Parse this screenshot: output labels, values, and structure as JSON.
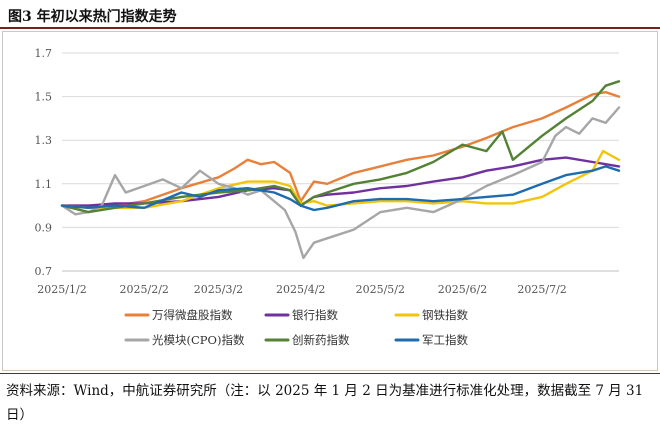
{
  "figure": {
    "title": "图3 年初以来热门指数走势",
    "source": "资料来源：Wind，中航证券研究所（注：以 2025 年 1 月 2 日为基准进行标准化处理，数据截至 7 月 31 日）"
  },
  "chart_data": {
    "type": "line",
    "title": "年初以来热门指数走势",
    "xlabel": "",
    "ylabel": "",
    "x_ticks": [
      "2025/1/2",
      "2025/2/2",
      "2025/3/2",
      "2025/4/2",
      "2025/5/2",
      "2025/6/2",
      "2025/7/2"
    ],
    "x_tick_positions": [
      0,
      31,
      59,
      90,
      120,
      151,
      181
    ],
    "x_range": [
      0,
      210
    ],
    "ylim": [
      0.7,
      1.7
    ],
    "y_ticks": [
      0.7,
      0.9,
      1.1,
      1.3,
      1.5,
      1.7
    ],
    "y_tick_labels": [
      "0.7",
      "0.9",
      "1.1",
      "1.3",
      "1.5",
      "1.7"
    ],
    "x_unit": "days since 2025/1/2",
    "legend_position": "bottom",
    "series": [
      {
        "name": "万得微盘股指数",
        "color": "#E8803A",
        "points": [
          [
            0,
            1.0
          ],
          [
            10,
            1.0
          ],
          [
            20,
            1.0
          ],
          [
            31,
            1.02
          ],
          [
            45,
            1.08
          ],
          [
            59,
            1.13
          ],
          [
            65,
            1.17
          ],
          [
            70,
            1.21
          ],
          [
            75,
            1.19
          ],
          [
            80,
            1.2
          ],
          [
            86,
            1.15
          ],
          [
            90,
            1.02
          ],
          [
            95,
            1.11
          ],
          [
            100,
            1.1
          ],
          [
            110,
            1.15
          ],
          [
            120,
            1.18
          ],
          [
            130,
            1.21
          ],
          [
            140,
            1.23
          ],
          [
            151,
            1.27
          ],
          [
            160,
            1.31
          ],
          [
            170,
            1.36
          ],
          [
            181,
            1.4
          ],
          [
            190,
            1.45
          ],
          [
            200,
            1.51
          ],
          [
            205,
            1.52
          ],
          [
            210,
            1.5
          ]
        ]
      },
      {
        "name": "银行指数",
        "color": "#7030A0",
        "points": [
          [
            0,
            1.0
          ],
          [
            10,
            1.0
          ],
          [
            20,
            1.01
          ],
          [
            31,
            1.01
          ],
          [
            45,
            1.02
          ],
          [
            59,
            1.04
          ],
          [
            70,
            1.07
          ],
          [
            80,
            1.08
          ],
          [
            86,
            1.07
          ],
          [
            90,
            1.0
          ],
          [
            95,
            1.04
          ],
          [
            100,
            1.05
          ],
          [
            110,
            1.06
          ],
          [
            120,
            1.08
          ],
          [
            130,
            1.09
          ],
          [
            140,
            1.11
          ],
          [
            151,
            1.13
          ],
          [
            160,
            1.16
          ],
          [
            170,
            1.18
          ],
          [
            181,
            1.21
          ],
          [
            190,
            1.22
          ],
          [
            200,
            1.2
          ],
          [
            205,
            1.19
          ],
          [
            210,
            1.18
          ]
        ]
      },
      {
        "name": "钢铁指数",
        "color": "#F2C40C",
        "points": [
          [
            0,
            1.0
          ],
          [
            10,
            0.99
          ],
          [
            20,
            0.99
          ],
          [
            31,
            0.99
          ],
          [
            45,
            1.02
          ],
          [
            59,
            1.08
          ],
          [
            70,
            1.11
          ],
          [
            80,
            1.11
          ],
          [
            86,
            1.09
          ],
          [
            90,
            1.01
          ],
          [
            95,
            1.02
          ],
          [
            100,
            1.0
          ],
          [
            110,
            1.01
          ],
          [
            120,
            1.02
          ],
          [
            130,
            1.02
          ],
          [
            140,
            1.01
          ],
          [
            151,
            1.02
          ],
          [
            160,
            1.01
          ],
          [
            170,
            1.01
          ],
          [
            181,
            1.04
          ],
          [
            190,
            1.1
          ],
          [
            200,
            1.16
          ],
          [
            204,
            1.25
          ],
          [
            207,
            1.23
          ],
          [
            210,
            1.21
          ]
        ]
      },
      {
        "name": "光模块(CPO)指数",
        "color": "#A6A6A6",
        "points": [
          [
            0,
            1.0
          ],
          [
            5,
            0.96
          ],
          [
            10,
            0.97
          ],
          [
            15,
            1.0
          ],
          [
            20,
            1.14
          ],
          [
            24,
            1.06
          ],
          [
            31,
            1.09
          ],
          [
            38,
            1.12
          ],
          [
            45,
            1.08
          ],
          [
            52,
            1.16
          ],
          [
            59,
            1.1
          ],
          [
            65,
            1.08
          ],
          [
            70,
            1.05
          ],
          [
            75,
            1.07
          ],
          [
            80,
            1.02
          ],
          [
            84,
            0.98
          ],
          [
            88,
            0.88
          ],
          [
            91,
            0.76
          ],
          [
            95,
            0.83
          ],
          [
            100,
            0.85
          ],
          [
            110,
            0.89
          ],
          [
            120,
            0.97
          ],
          [
            130,
            0.99
          ],
          [
            140,
            0.97
          ],
          [
            151,
            1.03
          ],
          [
            160,
            1.09
          ],
          [
            170,
            1.14
          ],
          [
            181,
            1.2
          ],
          [
            186,
            1.32
          ],
          [
            190,
            1.36
          ],
          [
            195,
            1.33
          ],
          [
            200,
            1.4
          ],
          [
            205,
            1.38
          ],
          [
            210,
            1.45
          ]
        ]
      },
      {
        "name": "创新药指数",
        "color": "#548235",
        "points": [
          [
            0,
            1.0
          ],
          [
            10,
            0.97
          ],
          [
            20,
            0.99
          ],
          [
            31,
            1.01
          ],
          [
            45,
            1.04
          ],
          [
            59,
            1.06
          ],
          [
            70,
            1.07
          ],
          [
            80,
            1.09
          ],
          [
            86,
            1.07
          ],
          [
            90,
            1.0
          ],
          [
            95,
            1.04
          ],
          [
            100,
            1.06
          ],
          [
            110,
            1.1
          ],
          [
            120,
            1.12
          ],
          [
            130,
            1.15
          ],
          [
            140,
            1.2
          ],
          [
            151,
            1.28
          ],
          [
            160,
            1.25
          ],
          [
            166,
            1.34
          ],
          [
            170,
            1.21
          ],
          [
            181,
            1.32
          ],
          [
            190,
            1.4
          ],
          [
            200,
            1.48
          ],
          [
            205,
            1.55
          ],
          [
            210,
            1.57
          ]
        ]
      },
      {
        "name": "军工指数",
        "color": "#1F6BAF",
        "points": [
          [
            0,
            1.0
          ],
          [
            10,
            0.99
          ],
          [
            20,
            1.0
          ],
          [
            31,
            0.99
          ],
          [
            45,
            1.06
          ],
          [
            52,
            1.04
          ],
          [
            59,
            1.07
          ],
          [
            70,
            1.08
          ],
          [
            80,
            1.06
          ],
          [
            86,
            1.03
          ],
          [
            90,
            1.0
          ],
          [
            95,
            0.98
          ],
          [
            100,
            0.99
          ],
          [
            110,
            1.02
          ],
          [
            120,
            1.03
          ],
          [
            130,
            1.03
          ],
          [
            140,
            1.02
          ],
          [
            151,
            1.03
          ],
          [
            160,
            1.04
          ],
          [
            170,
            1.05
          ],
          [
            181,
            1.1
          ],
          [
            190,
            1.14
          ],
          [
            200,
            1.16
          ],
          [
            205,
            1.18
          ],
          [
            210,
            1.16
          ]
        ]
      }
    ]
  }
}
